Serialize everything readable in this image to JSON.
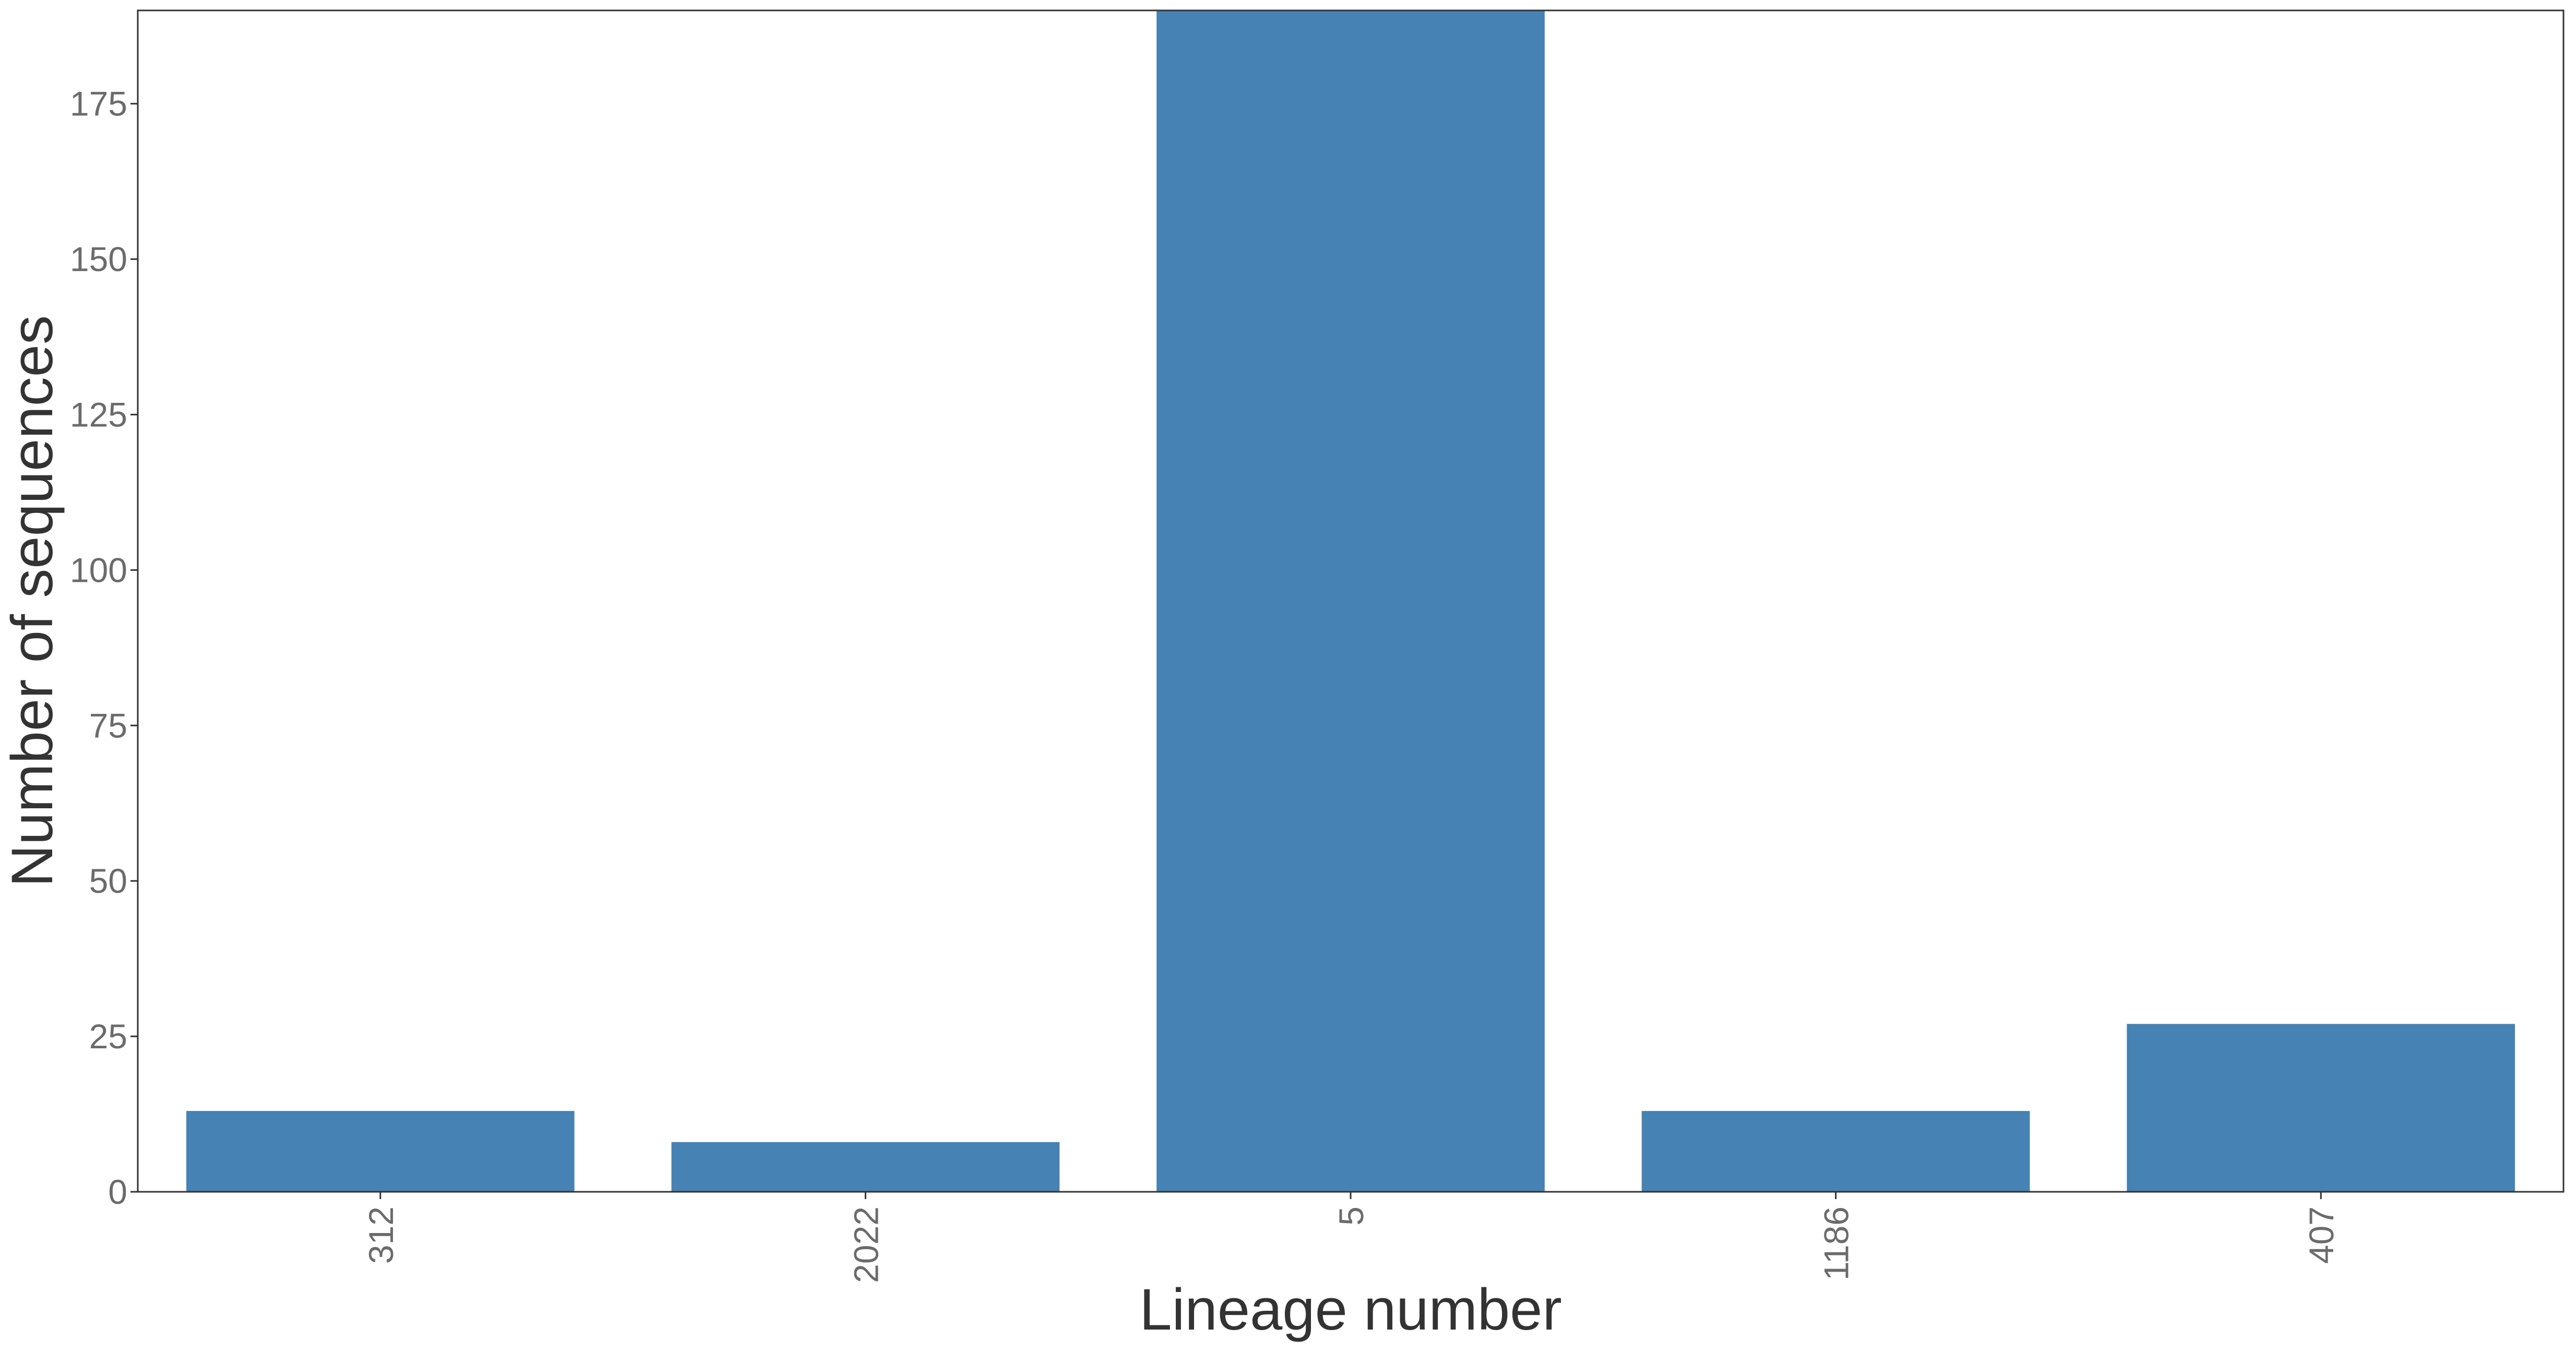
{
  "chart_data": {
    "type": "bar",
    "title": "",
    "xlabel": "Lineage number",
    "ylabel": "Number of sequences",
    "categories": [
      "312",
      "2022",
      "5",
      "1186",
      "407"
    ],
    "values": [
      13,
      8,
      190,
      13,
      27
    ],
    "ylim": [
      0,
      190
    ],
    "yticks": [
      0,
      25,
      50,
      75,
      100,
      125,
      150,
      175
    ],
    "ytick_labels": [
      "0",
      "25",
      "50",
      "75",
      "100",
      "125",
      "150",
      "175"
    ],
    "xtick_rotation": "vertical",
    "grid": false,
    "legend": "none",
    "bar_color": "#4682b4",
    "tick_label_color": "#6b6b6b",
    "axis_title_color": "#333333",
    "frame_color": "#333333"
  }
}
